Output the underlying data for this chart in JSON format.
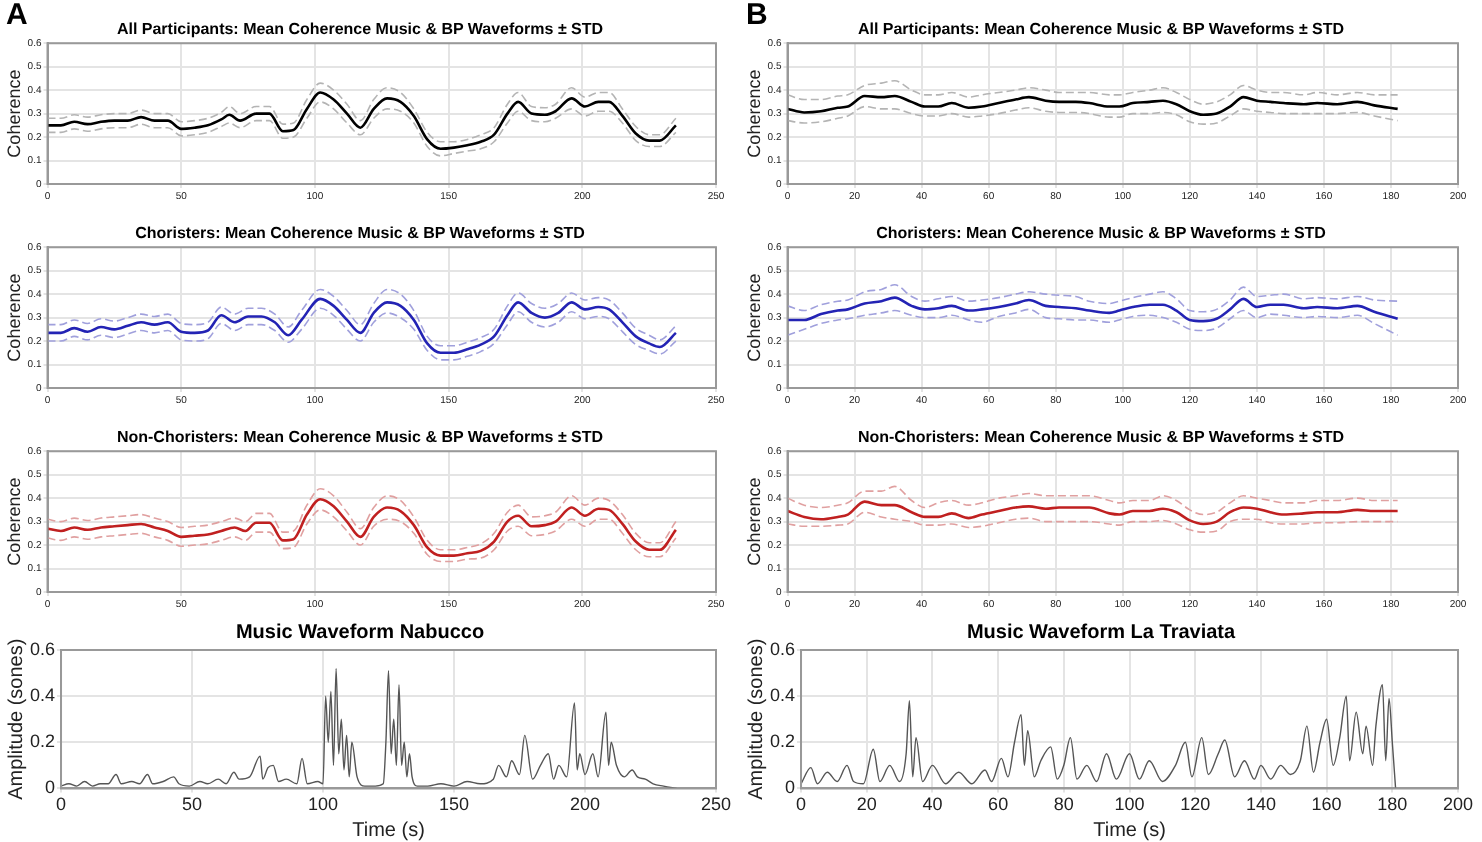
{
  "chart_data": [
    {
      "type": "line",
      "title": "All Participants: Mean Coherence Music & BP Waveforms ± STD",
      "ylabel": "Coherence",
      "annotations": [
        "A"
      ],
      "xlim": [
        0,
        250
      ],
      "xticks": [
        0,
        50,
        100,
        150,
        200,
        250
      ],
      "ylim": [
        0,
        0.6
      ],
      "yticks": [
        0,
        0.1,
        0.2,
        0.3,
        0.4,
        0.5,
        0.6
      ],
      "grid": true,
      "x": [
        0,
        5,
        10,
        15,
        20,
        25,
        30,
        35,
        40,
        45,
        50,
        55,
        60,
        65,
        68,
        72,
        78,
        83,
        88,
        92,
        97,
        102,
        107,
        112,
        117,
        122,
        127,
        132,
        137,
        142,
        147,
        152,
        157,
        162,
        167,
        172,
        176,
        181,
        186,
        190,
        196,
        201,
        206,
        210,
        215,
        220,
        225,
        229,
        235
      ],
      "series": [
        {
          "color": "#000000",
          "values": [
            0.25,
            0.25,
            0.265,
            0.255,
            0.265,
            0.27,
            0.27,
            0.285,
            0.27,
            0.27,
            0.235,
            0.24,
            0.25,
            0.275,
            0.295,
            0.27,
            0.3,
            0.3,
            0.225,
            0.23,
            0.32,
            0.39,
            0.36,
            0.3,
            0.24,
            0.32,
            0.365,
            0.35,
            0.29,
            0.19,
            0.15,
            0.155,
            0.165,
            0.18,
            0.21,
            0.3,
            0.35,
            0.3,
            0.295,
            0.31,
            0.365,
            0.33,
            0.35,
            0.35,
            0.29,
            0.215,
            0.185,
            0.185,
            0.25
          ]
        },
        {
          "color": "#b4b4b4",
          "line_style": "dashed",
          "values": [
            0.28,
            0.28,
            0.295,
            0.285,
            0.295,
            0.3,
            0.3,
            0.315,
            0.3,
            0.3,
            0.265,
            0.27,
            0.28,
            0.305,
            0.33,
            0.3,
            0.33,
            0.33,
            0.255,
            0.26,
            0.36,
            0.43,
            0.4,
            0.34,
            0.27,
            0.36,
            0.41,
            0.39,
            0.32,
            0.22,
            0.18,
            0.18,
            0.19,
            0.21,
            0.24,
            0.34,
            0.39,
            0.33,
            0.325,
            0.34,
            0.41,
            0.37,
            0.39,
            0.39,
            0.32,
            0.245,
            0.21,
            0.21,
            0.28
          ]
        },
        {
          "color": "#b4b4b4",
          "line_style": "dashed",
          "values": [
            0.22,
            0.22,
            0.235,
            0.225,
            0.235,
            0.24,
            0.24,
            0.255,
            0.24,
            0.24,
            0.205,
            0.21,
            0.22,
            0.245,
            0.26,
            0.24,
            0.27,
            0.27,
            0.195,
            0.2,
            0.28,
            0.35,
            0.32,
            0.26,
            0.21,
            0.28,
            0.32,
            0.31,
            0.26,
            0.16,
            0.12,
            0.13,
            0.14,
            0.15,
            0.18,
            0.26,
            0.31,
            0.27,
            0.265,
            0.28,
            0.32,
            0.29,
            0.31,
            0.31,
            0.26,
            0.185,
            0.16,
            0.16,
            0.22
          ]
        }
      ]
    },
    {
      "type": "line",
      "title": "All Participants: Mean Coherence Music & BP Waveforms ± STD",
      "ylabel": "Coherence",
      "annotations": [
        "B"
      ],
      "xlim": [
        0,
        200
      ],
      "xticks": [
        0,
        20,
        40,
        60,
        80,
        100,
        120,
        140,
        160,
        180,
        200
      ],
      "ylim": [
        0,
        0.6
      ],
      "yticks": [
        0,
        0.1,
        0.2,
        0.3,
        0.4,
        0.5,
        0.6
      ],
      "grid": true,
      "x": [
        0,
        5,
        10,
        15,
        18,
        23,
        28,
        32,
        37,
        41,
        45,
        49,
        54,
        58,
        63,
        68,
        72,
        77,
        81,
        86,
        90,
        96,
        99,
        103,
        108,
        112,
        116,
        120,
        124,
        128,
        132,
        136,
        140,
        144,
        148,
        154,
        158,
        164,
        170,
        175,
        182
      ],
      "series": [
        {
          "color": "#000000",
          "values": [
            0.32,
            0.305,
            0.31,
            0.325,
            0.33,
            0.375,
            0.37,
            0.375,
            0.35,
            0.33,
            0.33,
            0.345,
            0.325,
            0.33,
            0.345,
            0.36,
            0.37,
            0.355,
            0.35,
            0.35,
            0.345,
            0.33,
            0.33,
            0.345,
            0.35,
            0.355,
            0.34,
            0.31,
            0.295,
            0.3,
            0.33,
            0.37,
            0.355,
            0.35,
            0.345,
            0.34,
            0.345,
            0.34,
            0.35,
            0.335,
            0.32
          ]
        },
        {
          "color": "#b4b4b4",
          "line_style": "dashed",
          "values": [
            0.38,
            0.36,
            0.36,
            0.375,
            0.38,
            0.42,
            0.43,
            0.44,
            0.4,
            0.38,
            0.38,
            0.39,
            0.37,
            0.38,
            0.39,
            0.4,
            0.41,
            0.4,
            0.39,
            0.39,
            0.39,
            0.38,
            0.38,
            0.39,
            0.4,
            0.41,
            0.39,
            0.36,
            0.34,
            0.35,
            0.38,
            0.42,
            0.4,
            0.39,
            0.39,
            0.38,
            0.39,
            0.38,
            0.39,
            0.38,
            0.38
          ]
        },
        {
          "color": "#b4b4b4",
          "line_style": "dashed",
          "values": [
            0.27,
            0.26,
            0.265,
            0.28,
            0.29,
            0.33,
            0.32,
            0.32,
            0.3,
            0.29,
            0.29,
            0.3,
            0.285,
            0.29,
            0.3,
            0.315,
            0.325,
            0.31,
            0.305,
            0.305,
            0.3,
            0.285,
            0.285,
            0.3,
            0.3,
            0.305,
            0.295,
            0.265,
            0.255,
            0.26,
            0.29,
            0.32,
            0.31,
            0.305,
            0.3,
            0.3,
            0.3,
            0.3,
            0.305,
            0.29,
            0.27
          ]
        }
      ]
    },
    {
      "type": "line",
      "title": "Choristers: Mean Coherence Music & BP Waveforms ± STD",
      "ylabel": "Coherence",
      "xlim": [
        0,
        250
      ],
      "xticks": [
        0,
        50,
        100,
        150,
        200,
        250
      ],
      "ylim": [
        0,
        0.6
      ],
      "yticks": [
        0,
        0.1,
        0.2,
        0.3,
        0.4,
        0.5,
        0.6
      ],
      "grid": true,
      "x": [
        0,
        5,
        10,
        15,
        20,
        25,
        30,
        35,
        40,
        45,
        50,
        55,
        60,
        65,
        70,
        75,
        80,
        85,
        90,
        95,
        102,
        107,
        112,
        117,
        122,
        127,
        132,
        137,
        142,
        147,
        152,
        157,
        162,
        167,
        172,
        176,
        181,
        186,
        191,
        196,
        201,
        206,
        210,
        215,
        220,
        225,
        229,
        235
      ],
      "series": [
        {
          "color": "#2323b4",
          "values": [
            0.235,
            0.235,
            0.255,
            0.24,
            0.26,
            0.25,
            0.265,
            0.28,
            0.27,
            0.28,
            0.24,
            0.235,
            0.245,
            0.31,
            0.28,
            0.305,
            0.305,
            0.28,
            0.225,
            0.29,
            0.38,
            0.35,
            0.29,
            0.235,
            0.32,
            0.365,
            0.35,
            0.29,
            0.19,
            0.15,
            0.15,
            0.165,
            0.185,
            0.22,
            0.31,
            0.365,
            0.32,
            0.3,
            0.32,
            0.365,
            0.335,
            0.345,
            0.335,
            0.28,
            0.22,
            0.19,
            0.175,
            0.235
          ]
        },
        {
          "color": "#a0a0dc",
          "line_style": "dashed",
          "values": [
            0.27,
            0.27,
            0.29,
            0.275,
            0.295,
            0.285,
            0.3,
            0.315,
            0.305,
            0.315,
            0.275,
            0.27,
            0.28,
            0.345,
            0.315,
            0.34,
            0.34,
            0.315,
            0.26,
            0.33,
            0.42,
            0.39,
            0.33,
            0.27,
            0.36,
            0.42,
            0.4,
            0.33,
            0.22,
            0.18,
            0.18,
            0.195,
            0.215,
            0.25,
            0.35,
            0.405,
            0.36,
            0.34,
            0.36,
            0.405,
            0.375,
            0.385,
            0.375,
            0.32,
            0.255,
            0.225,
            0.205,
            0.265
          ]
        },
        {
          "color": "#a0a0dc",
          "line_style": "dashed",
          "values": [
            0.2,
            0.2,
            0.22,
            0.205,
            0.225,
            0.215,
            0.23,
            0.245,
            0.235,
            0.245,
            0.205,
            0.2,
            0.21,
            0.275,
            0.245,
            0.27,
            0.27,
            0.245,
            0.195,
            0.25,
            0.34,
            0.31,
            0.25,
            0.2,
            0.28,
            0.32,
            0.3,
            0.25,
            0.16,
            0.12,
            0.12,
            0.135,
            0.155,
            0.19,
            0.27,
            0.325,
            0.28,
            0.26,
            0.28,
            0.325,
            0.295,
            0.305,
            0.295,
            0.24,
            0.185,
            0.16,
            0.145,
            0.2
          ]
        }
      ]
    },
    {
      "type": "line",
      "title": "Choristers: Mean Coherence Music & BP Waveforms ± STD",
      "ylabel": "Coherence",
      "xlim": [
        0,
        200
      ],
      "xticks": [
        0,
        20,
        40,
        60,
        80,
        100,
        120,
        140,
        160,
        180,
        200
      ],
      "ylim": [
        0,
        0.6
      ],
      "yticks": [
        0,
        0.1,
        0.2,
        0.3,
        0.4,
        0.5,
        0.6
      ],
      "grid": true,
      "x": [
        0,
        5,
        10,
        15,
        18,
        23,
        28,
        32,
        37,
        41,
        45,
        49,
        54,
        58,
        63,
        68,
        72,
        77,
        81,
        86,
        90,
        96,
        99,
        103,
        108,
        112,
        116,
        120,
        124,
        128,
        132,
        136,
        140,
        144,
        148,
        154,
        158,
        164,
        170,
        175,
        182
      ],
      "series": [
        {
          "color": "#2323b4",
          "values": [
            0.29,
            0.29,
            0.315,
            0.33,
            0.335,
            0.36,
            0.37,
            0.385,
            0.35,
            0.335,
            0.34,
            0.35,
            0.33,
            0.335,
            0.345,
            0.36,
            0.375,
            0.35,
            0.345,
            0.34,
            0.33,
            0.32,
            0.33,
            0.345,
            0.355,
            0.355,
            0.33,
            0.29,
            0.285,
            0.295,
            0.335,
            0.38,
            0.345,
            0.355,
            0.355,
            0.34,
            0.345,
            0.34,
            0.35,
            0.325,
            0.295
          ]
        },
        {
          "color": "#a0a0dc",
          "line_style": "dashed",
          "values": [
            0.35,
            0.33,
            0.355,
            0.37,
            0.375,
            0.41,
            0.42,
            0.44,
            0.39,
            0.37,
            0.38,
            0.39,
            0.37,
            0.375,
            0.385,
            0.4,
            0.41,
            0.4,
            0.395,
            0.39,
            0.37,
            0.36,
            0.37,
            0.385,
            0.4,
            0.41,
            0.38,
            0.33,
            0.325,
            0.335,
            0.375,
            0.43,
            0.39,
            0.395,
            0.4,
            0.38,
            0.385,
            0.38,
            0.39,
            0.375,
            0.37
          ]
        },
        {
          "color": "#a0a0dc",
          "line_style": "dashed",
          "values": [
            0.225,
            0.25,
            0.275,
            0.29,
            0.295,
            0.31,
            0.32,
            0.33,
            0.31,
            0.3,
            0.3,
            0.31,
            0.29,
            0.28,
            0.305,
            0.32,
            0.335,
            0.3,
            0.295,
            0.29,
            0.29,
            0.28,
            0.29,
            0.305,
            0.31,
            0.3,
            0.28,
            0.25,
            0.245,
            0.255,
            0.295,
            0.33,
            0.3,
            0.315,
            0.31,
            0.3,
            0.305,
            0.3,
            0.31,
            0.275,
            0.225
          ]
        }
      ]
    },
    {
      "type": "line",
      "title": "Non-Choristers: Mean Coherence Music & BP Waveforms ± STD",
      "ylabel": "Coherence",
      "xlim": [
        0,
        250
      ],
      "xticks": [
        0,
        50,
        100,
        150,
        200,
        250
      ],
      "ylim": [
        0,
        0.6
      ],
      "yticks": [
        0,
        0.1,
        0.2,
        0.3,
        0.4,
        0.5,
        0.6
      ],
      "grid": true,
      "x": [
        0,
        5,
        10,
        15,
        20,
        25,
        30,
        35,
        40,
        45,
        50,
        55,
        60,
        65,
        70,
        74,
        78,
        83,
        88,
        92,
        97,
        102,
        107,
        112,
        117,
        122,
        127,
        132,
        137,
        142,
        147,
        152,
        157,
        162,
        167,
        172,
        176,
        181,
        186,
        190,
        196,
        201,
        206,
        210,
        215,
        220,
        225,
        229,
        235
      ],
      "series": [
        {
          "color": "#c02020",
          "values": [
            0.27,
            0.26,
            0.275,
            0.265,
            0.275,
            0.28,
            0.285,
            0.29,
            0.275,
            0.26,
            0.235,
            0.24,
            0.245,
            0.26,
            0.275,
            0.26,
            0.295,
            0.295,
            0.22,
            0.225,
            0.33,
            0.395,
            0.365,
            0.3,
            0.235,
            0.32,
            0.36,
            0.345,
            0.285,
            0.19,
            0.155,
            0.155,
            0.165,
            0.175,
            0.215,
            0.3,
            0.325,
            0.28,
            0.285,
            0.3,
            0.36,
            0.325,
            0.355,
            0.35,
            0.29,
            0.215,
            0.18,
            0.18,
            0.265
          ]
        },
        {
          "color": "#e0a0a0",
          "line_style": "dashed",
          "values": [
            0.31,
            0.3,
            0.315,
            0.305,
            0.315,
            0.32,
            0.325,
            0.33,
            0.315,
            0.3,
            0.275,
            0.28,
            0.285,
            0.3,
            0.315,
            0.3,
            0.335,
            0.335,
            0.255,
            0.26,
            0.37,
            0.44,
            0.41,
            0.34,
            0.27,
            0.36,
            0.41,
            0.39,
            0.32,
            0.22,
            0.18,
            0.18,
            0.19,
            0.205,
            0.25,
            0.34,
            0.37,
            0.32,
            0.325,
            0.34,
            0.41,
            0.37,
            0.4,
            0.39,
            0.33,
            0.25,
            0.21,
            0.21,
            0.3
          ]
        },
        {
          "color": "#e0a0a0",
          "line_style": "dashed",
          "values": [
            0.23,
            0.22,
            0.235,
            0.225,
            0.235,
            0.24,
            0.245,
            0.25,
            0.235,
            0.22,
            0.195,
            0.2,
            0.205,
            0.22,
            0.235,
            0.22,
            0.255,
            0.255,
            0.185,
            0.19,
            0.29,
            0.35,
            0.32,
            0.26,
            0.2,
            0.28,
            0.31,
            0.3,
            0.25,
            0.16,
            0.13,
            0.13,
            0.14,
            0.145,
            0.18,
            0.26,
            0.28,
            0.24,
            0.245,
            0.26,
            0.31,
            0.28,
            0.31,
            0.31,
            0.25,
            0.18,
            0.15,
            0.15,
            0.23
          ]
        }
      ]
    },
    {
      "type": "line",
      "title": "Non-Choristers: Mean Coherence Music & BP Waveforms ± STD",
      "ylabel": "Coherence",
      "xlim": [
        0,
        200
      ],
      "xticks": [
        0,
        20,
        40,
        60,
        80,
        100,
        120,
        140,
        160,
        180,
        200
      ],
      "ylim": [
        0,
        0.6
      ],
      "yticks": [
        0,
        0.1,
        0.2,
        0.3,
        0.4,
        0.5,
        0.6
      ],
      "grid": true,
      "x": [
        0,
        5,
        10,
        15,
        18,
        23,
        28,
        32,
        37,
        41,
        45,
        49,
        54,
        58,
        63,
        68,
        72,
        77,
        81,
        86,
        90,
        96,
        99,
        103,
        108,
        112,
        116,
        120,
        124,
        128,
        132,
        136,
        140,
        144,
        148,
        154,
        158,
        164,
        170,
        175,
        182
      ],
      "series": [
        {
          "color": "#c02020",
          "values": [
            0.345,
            0.32,
            0.31,
            0.32,
            0.33,
            0.385,
            0.37,
            0.37,
            0.34,
            0.32,
            0.32,
            0.335,
            0.315,
            0.33,
            0.345,
            0.36,
            0.365,
            0.355,
            0.36,
            0.36,
            0.36,
            0.335,
            0.33,
            0.345,
            0.345,
            0.355,
            0.34,
            0.305,
            0.29,
            0.3,
            0.34,
            0.36,
            0.355,
            0.34,
            0.33,
            0.335,
            0.34,
            0.34,
            0.35,
            0.345,
            0.345
          ]
        },
        {
          "color": "#e0a0a0",
          "line_style": "dashed",
          "values": [
            0.4,
            0.37,
            0.36,
            0.37,
            0.38,
            0.43,
            0.43,
            0.45,
            0.39,
            0.36,
            0.38,
            0.39,
            0.37,
            0.38,
            0.4,
            0.41,
            0.42,
            0.41,
            0.41,
            0.41,
            0.41,
            0.39,
            0.38,
            0.39,
            0.39,
            0.41,
            0.39,
            0.35,
            0.33,
            0.34,
            0.38,
            0.41,
            0.4,
            0.39,
            0.38,
            0.38,
            0.39,
            0.39,
            0.4,
            0.39,
            0.39
          ]
        },
        {
          "color": "#e0a0a0",
          "line_style": "dashed",
          "values": [
            0.29,
            0.28,
            0.28,
            0.285,
            0.29,
            0.34,
            0.32,
            0.31,
            0.3,
            0.285,
            0.285,
            0.29,
            0.275,
            0.28,
            0.295,
            0.31,
            0.315,
            0.3,
            0.3,
            0.3,
            0.3,
            0.29,
            0.285,
            0.3,
            0.3,
            0.305,
            0.29,
            0.265,
            0.255,
            0.26,
            0.3,
            0.31,
            0.31,
            0.295,
            0.29,
            0.29,
            0.295,
            0.295,
            0.3,
            0.3,
            0.3
          ]
        }
      ]
    },
    {
      "type": "line",
      "title": "Music Waveform Nabucco",
      "xlabel": "Time (s)",
      "ylabel": "Amplitude (sones)",
      "xlim": [
        0,
        250
      ],
      "xticks": [
        0,
        50,
        100,
        150,
        200,
        250
      ],
      "ylim": [
        0,
        0.6
      ],
      "yticks": [
        0,
        0.2,
        0.4,
        0.6
      ],
      "grid": true,
      "series": [
        {
          "color": "#555555",
          "x": [
            0,
            3,
            6,
            9,
            12,
            15,
            18,
            21,
            23,
            27,
            30,
            33,
            35,
            39,
            43,
            45,
            49,
            53,
            56,
            60,
            63,
            66,
            68,
            72,
            76,
            77,
            79,
            81,
            83,
            86,
            90,
            92,
            94,
            98,
            100,
            101,
            102,
            103,
            104,
            105,
            106,
            107,
            108,
            109,
            110,
            111,
            113,
            116,
            120,
            123,
            124,
            125,
            126,
            127,
            128,
            129,
            130,
            131,
            132,
            133,
            134,
            136,
            140,
            145,
            150,
            155,
            160,
            165,
            167,
            170,
            172,
            175,
            177,
            180,
            183,
            186,
            188,
            190,
            193,
            196,
            197,
            198,
            200,
            203,
            205,
            208,
            209,
            210,
            212,
            215,
            218,
            220,
            223,
            226,
            230,
            235
          ],
          "values": [
            0.01,
            0.02,
            0.01,
            0.03,
            0.01,
            0.02,
            0.02,
            0.06,
            0.02,
            0.03,
            0.02,
            0.06,
            0.02,
            0.03,
            0.05,
            0.02,
            0.01,
            0.03,
            0.02,
            0.04,
            0.02,
            0.07,
            0.04,
            0.05,
            0.14,
            0.04,
            0.09,
            0.1,
            0.03,
            0.04,
            0.02,
            0.13,
            0.02,
            0.03,
            0.02,
            0.4,
            0.2,
            0.42,
            0.1,
            0.52,
            0.15,
            0.3,
            0.08,
            0.23,
            0.05,
            0.2,
            0.05,
            0.01,
            0.01,
            0.02,
            0.2,
            0.51,
            0.15,
            0.3,
            0.1,
            0.45,
            0.1,
            0.2,
            0.05,
            0.15,
            0.05,
            0.01,
            0.01,
            0.02,
            0.01,
            0.03,
            0.02,
            0.04,
            0.1,
            0.05,
            0.12,
            0.06,
            0.23,
            0.04,
            0.1,
            0.15,
            0.04,
            0.1,
            0.05,
            0.37,
            0.08,
            0.15,
            0.06,
            0.15,
            0.05,
            0.33,
            0.1,
            0.2,
            0.1,
            0.05,
            0.08,
            0.05,
            0.04,
            0.02,
            0.01,
            0
          ]
        }
      ]
    },
    {
      "type": "line",
      "title": "Music Waveform La Traviata",
      "xlabel": "Time (s)",
      "ylabel": "Amplitude (sones)",
      "xlim": [
        0,
        200
      ],
      "xticks": [
        0,
        20,
        40,
        60,
        80,
        100,
        120,
        140,
        160,
        180,
        200
      ],
      "ylim": [
        0,
        0.6
      ],
      "yticks": [
        0,
        0.2,
        0.4,
        0.6
      ],
      "grid": true,
      "series": [
        {
          "color": "#555555",
          "x": [
            0,
            3,
            5,
            8,
            11,
            14,
            16,
            19,
            22,
            24,
            27,
            30,
            32,
            33,
            34,
            35,
            37,
            40,
            44,
            48,
            52,
            56,
            58,
            61,
            63,
            65,
            67,
            68,
            69,
            71,
            73,
            76,
            78,
            80,
            82,
            84,
            87,
            90,
            93,
            96,
            100,
            103,
            106,
            110,
            114,
            117,
            119,
            122,
            124,
            127,
            129,
            132,
            135,
            138,
            140,
            143,
            146,
            149,
            152,
            154,
            156,
            158,
            160,
            162,
            164,
            166,
            167,
            169,
            171,
            172,
            174,
            175,
            177,
            178,
            179,
            180,
            181
          ],
          "values": [
            0.02,
            0.09,
            0.02,
            0.07,
            0.03,
            0.1,
            0.03,
            0.02,
            0.17,
            0.03,
            0.1,
            0.03,
            0.15,
            0.38,
            0.05,
            0.22,
            0.03,
            0.1,
            0.02,
            0.07,
            0.02,
            0.08,
            0.03,
            0.13,
            0.05,
            0.2,
            0.32,
            0.1,
            0.25,
            0.05,
            0.12,
            0.18,
            0.04,
            0.1,
            0.22,
            0.04,
            0.1,
            0.03,
            0.15,
            0.04,
            0.15,
            0.04,
            0.12,
            0.03,
            0.1,
            0.2,
            0.05,
            0.22,
            0.06,
            0.15,
            0.21,
            0.05,
            0.12,
            0.04,
            0.1,
            0.04,
            0.1,
            0.06,
            0.12,
            0.27,
            0.07,
            0.2,
            0.3,
            0.1,
            0.22,
            0.4,
            0.12,
            0.33,
            0.15,
            0.27,
            0.1,
            0.27,
            0.45,
            0.12,
            0.39,
            0.2,
            0
          ]
        }
      ]
    }
  ]
}
